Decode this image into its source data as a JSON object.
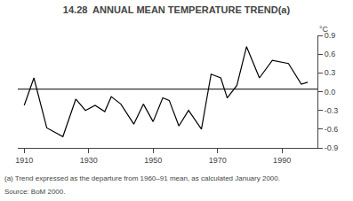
{
  "chart_data": {
    "type": "line",
    "title": "14.28  ANNUAL MEAN TEMPERATURE TREND(a)",
    "ylabel": "°C",
    "footnotes": [
      "(a) Trend expressed as the departure from 1960–91 mean, as calculated January 2000.",
      "Source: BoM 2000."
    ],
    "x": [
      1910,
      1913,
      1917,
      1922,
      1926,
      1929,
      1932,
      1935,
      1937,
      1940,
      1944,
      1947,
      1950,
      1953,
      1955,
      1958,
      1961,
      1965,
      1968,
      1971,
      1973,
      1976,
      1979,
      1983,
      1987,
      1992,
      1996,
      1998
    ],
    "values": [
      -0.22,
      0.22,
      -0.58,
      -0.72,
      -0.12,
      -0.3,
      -0.22,
      -0.32,
      -0.08,
      -0.2,
      -0.52,
      -0.2,
      -0.48,
      -0.1,
      -0.14,
      -0.55,
      -0.3,
      -0.6,
      0.28,
      0.22,
      -0.1,
      0.1,
      0.72,
      0.22,
      0.5,
      0.45,
      0.12,
      0.15
    ],
    "color": "#000000",
    "reference_line": 0.04,
    "xlim": [
      1908,
      2001
    ],
    "xticks": [
      1910,
      1930,
      1950,
      1970,
      1990
    ],
    "ylim": [
      -0.9,
      0.9
    ],
    "yticks": [
      -0.9,
      -0.6,
      -0.3,
      {
        "value": 0.0,
        "label": "0.0"
      },
      0.3,
      0.6,
      0.9
    ],
    "grid": false
  }
}
